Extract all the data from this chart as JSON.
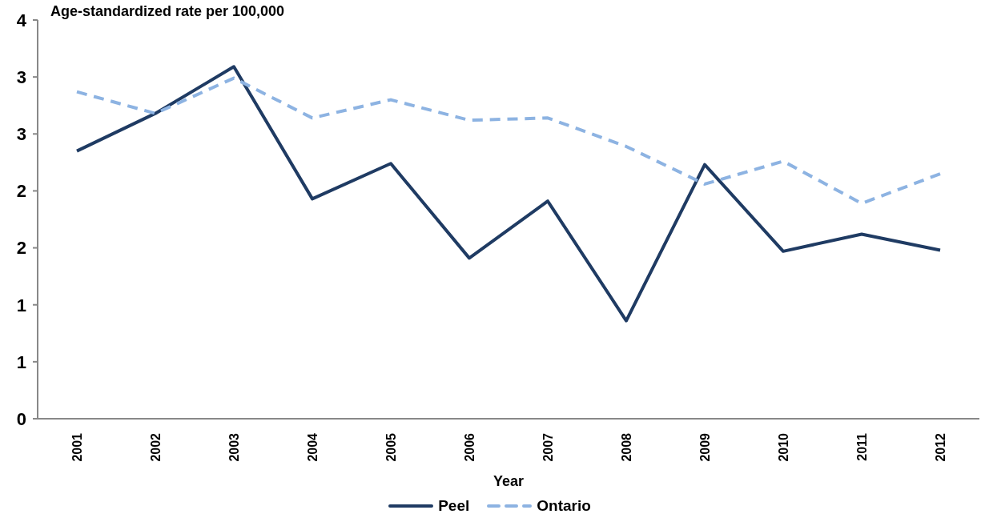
{
  "chart_data": {
    "type": "line",
    "ylabel": "Age-standardized rate per 100,000",
    "xlabel": "Year",
    "categories": [
      "2001",
      "2002",
      "2003",
      "2004",
      "2005",
      "2006",
      "2007",
      "2008",
      "2009",
      "2010",
      "2011",
      "2012"
    ],
    "series": [
      {
        "name": "Peel",
        "color": "#1f3b63",
        "line_style": "solid",
        "values": [
          2.35,
          2.68,
          3.09,
          1.93,
          2.24,
          1.41,
          1.91,
          0.86,
          2.23,
          1.47,
          1.62,
          1.48
        ]
      },
      {
        "name": "Ontario",
        "color": "#8db3e2",
        "line_style": "dashed",
        "values": [
          2.87,
          2.68,
          2.99,
          2.64,
          2.8,
          2.62,
          2.64,
          2.39,
          2.06,
          2.26,
          1.89,
          2.15
        ]
      }
    ],
    "ylim": [
      0,
      3.5
    ],
    "yticks": [
      0,
      {
        "value": 0.5,
        "label": "1"
      },
      1,
      {
        "value": 1.5,
        "label": "2"
      },
      2,
      {
        "value": 2.5,
        "label": "3"
      },
      3,
      {
        "value": 3.5,
        "label": "4"
      }
    ],
    "marker": "none",
    "legend": "bottom"
  }
}
